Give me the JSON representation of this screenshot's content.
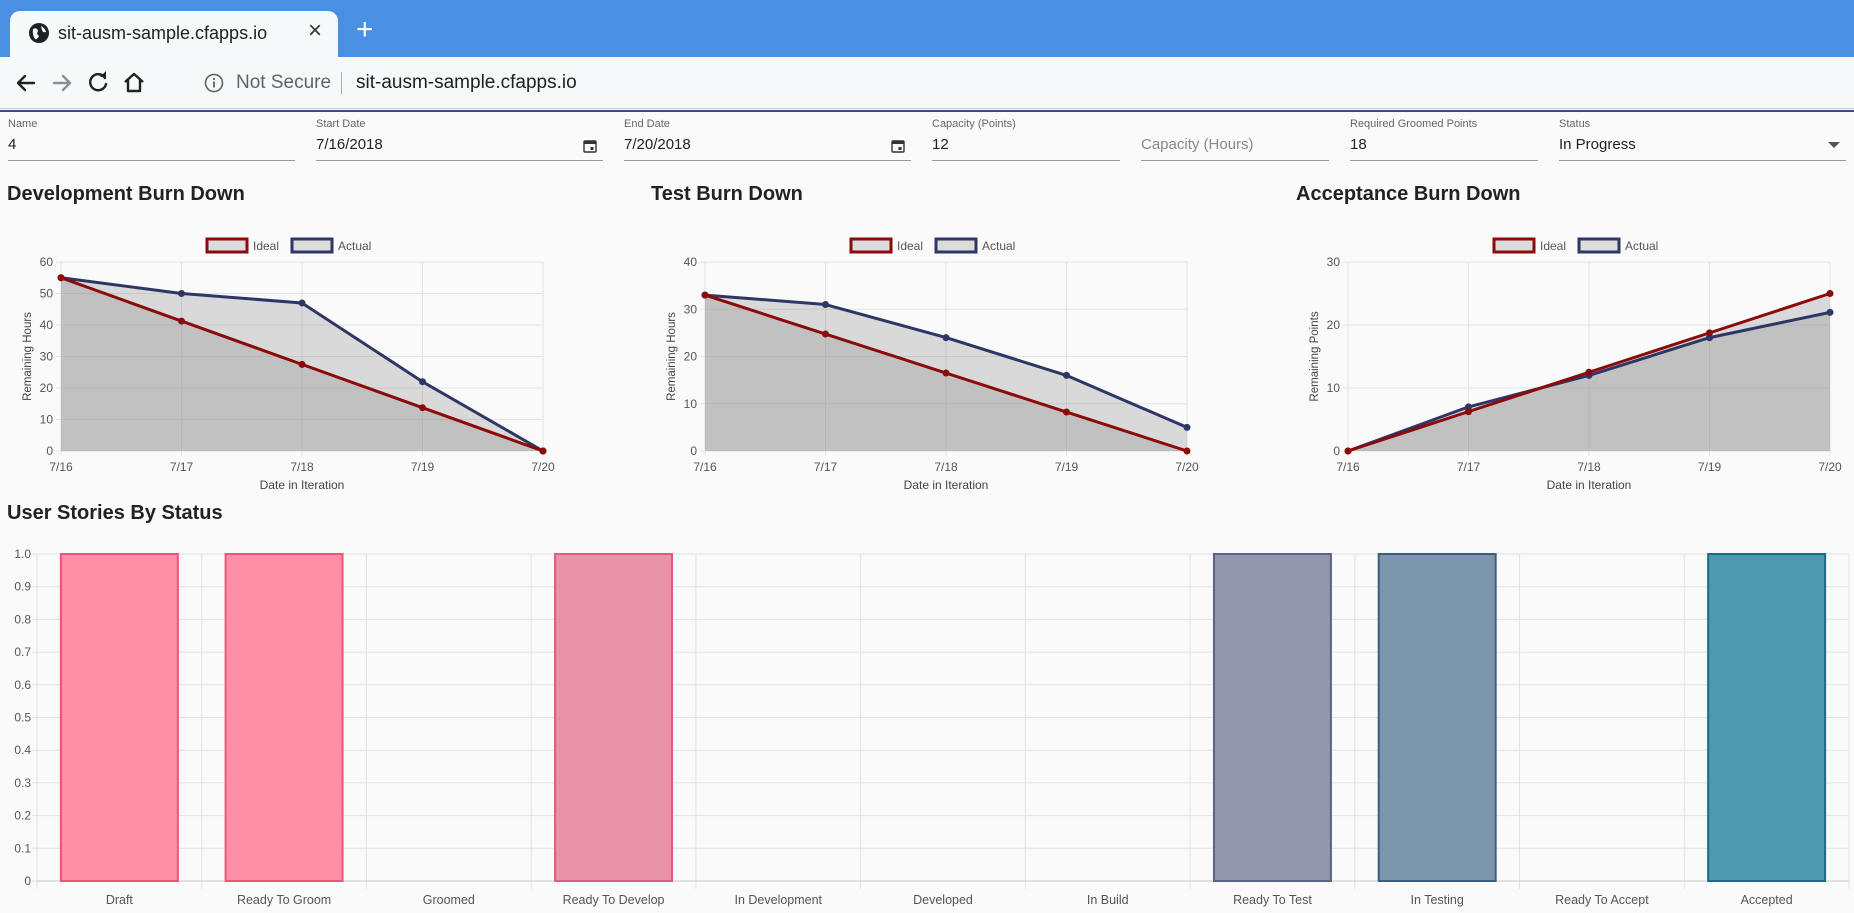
{
  "browser": {
    "tab_title": "sit-ausm-sample.cfapps.io",
    "security_label": "Not Secure",
    "url": "sit-ausm-sample.cfapps.io"
  },
  "form": {
    "name": {
      "label": "Name",
      "value": "4"
    },
    "start_date": {
      "label": "Start Date",
      "value": "7/16/2018"
    },
    "end_date": {
      "label": "End Date",
      "value": "7/20/2018"
    },
    "capacity_points": {
      "label": "Capacity (Points)",
      "value": "12"
    },
    "capacity_hours": {
      "placeholder": "Capacity (Hours)"
    },
    "required_groomed": {
      "label": "Required Groomed Points",
      "value": "18"
    },
    "status": {
      "label": "Status",
      "value": "In Progress"
    }
  },
  "colors": {
    "ideal": "#8b0a0a",
    "actual": "#2e3666"
  },
  "chart_data": [
    {
      "type": "line",
      "title": "Development Burn Down",
      "xlabel": "Date in Iteration",
      "ylabel": "Remaining Hours",
      "x": [
        "7/16",
        "7/17",
        "7/18",
        "7/19",
        "7/20"
      ],
      "ylim": [
        0,
        60
      ],
      "yticks": [
        0,
        10,
        20,
        30,
        40,
        50,
        60
      ],
      "legend": "top",
      "series": [
        {
          "name": "Ideal",
          "values": [
            55,
            41.25,
            27.5,
            13.75,
            0
          ]
        },
        {
          "name": "Actual",
          "values": [
            55,
            50,
            47,
            22,
            0
          ]
        }
      ]
    },
    {
      "type": "line",
      "title": "Test Burn Down",
      "xlabel": "Date in Iteration",
      "ylabel": "Remaining Hours",
      "x": [
        "7/16",
        "7/17",
        "7/18",
        "7/19",
        "7/20"
      ],
      "ylim": [
        0,
        40
      ],
      "yticks": [
        0,
        10,
        20,
        30,
        40
      ],
      "legend": "top",
      "series": [
        {
          "name": "Ideal",
          "values": [
            33,
            24.75,
            16.5,
            8.25,
            0
          ]
        },
        {
          "name": "Actual",
          "values": [
            33,
            31,
            24,
            16,
            5
          ]
        }
      ]
    },
    {
      "type": "line",
      "title": "Acceptance Burn Down",
      "xlabel": "Date in Iteration",
      "ylabel": "Remaining Points",
      "x": [
        "7/16",
        "7/17",
        "7/18",
        "7/19",
        "7/20"
      ],
      "ylim": [
        0,
        30
      ],
      "yticks": [
        0,
        10,
        20,
        30
      ],
      "legend": "top",
      "series": [
        {
          "name": "Ideal",
          "values": [
            0,
            6.25,
            12.5,
            18.75,
            25
          ]
        },
        {
          "name": "Actual",
          "values": [
            0,
            7,
            12,
            18,
            22
          ]
        }
      ]
    },
    {
      "type": "bar",
      "title": "User Stories By Status",
      "categories": [
        "Draft",
        "Ready To Groom",
        "Groomed",
        "Ready To Develop",
        "In Development",
        "Developed",
        "In Build",
        "Ready To Test",
        "In Testing",
        "Ready To Accept",
        "Accepted"
      ],
      "values": [
        1,
        1,
        0,
        1,
        0,
        0,
        0,
        1,
        1,
        0,
        1
      ],
      "ylim": [
        0,
        1
      ],
      "yticks": [
        "0",
        "0.1",
        "0.2",
        "0.3",
        "0.4",
        "0.5",
        "0.6",
        "0.7",
        "0.8",
        "0.9",
        "1.0"
      ],
      "bar_fill": [
        "#ff8fa6",
        "#ff8fa6",
        "#ff8fa6",
        "#e893aa",
        "#e893aa",
        "#e893aa",
        "#e893aa",
        "#9297ad",
        "#7c97ad",
        "#7c97ad",
        "#4f99b0"
      ],
      "bar_stroke": [
        "#f0527a",
        "#f0527a",
        "#f0527a",
        "#e05a84",
        "#e05a84",
        "#e05a84",
        "#e05a84",
        "#5b6286",
        "#3e5d7e",
        "#3e5d7e",
        "#176e86"
      ]
    }
  ]
}
